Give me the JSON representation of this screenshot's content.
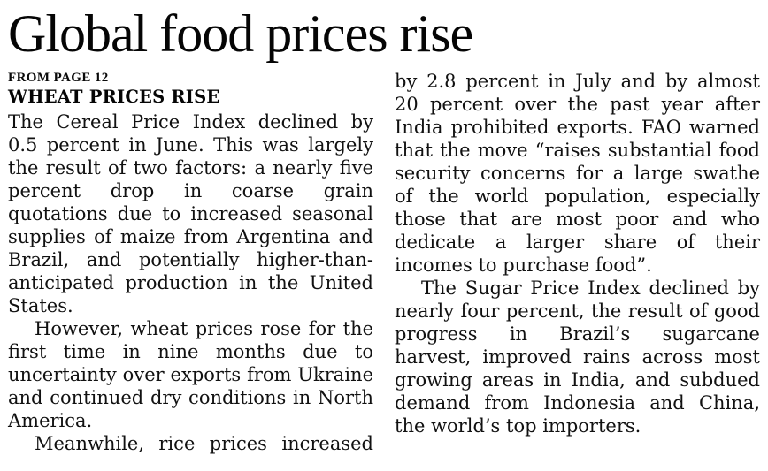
{
  "article": {
    "headline": "Global food prices rise",
    "continuation": "FROM PAGE 12",
    "subhead": "WHEAT PRICES RISE",
    "left_column": {
      "para1": "The Cereal Price Index declined by 0.5 percent in June. This was largely the result of two factors: a nearly five percent drop in coarse grain quotations due to increased seasonal supplies of maize from Argentina and Brazil, and potentially higher-than-anticipated production in the United States.",
      "para2": "However, wheat prices rose for the first time in nine months due to uncertainty over exports from Ukraine and continued dry conditions in North America.",
      "para3": "Meanwhile, rice prices increased"
    },
    "right_column": {
      "para1": "by 2.8 percent in July and by almost 20 percent over the past year after India prohibited exports. FAO warned that the move “raises substantial food security concerns for a large swathe of the world population, especially those that are most poor and who dedicate a larger share of their incomes to purchase food”.",
      "para2": "The Sugar Price Index declined by nearly four percent, the result of good progress in Brazil’s sugarcane harvest, improved rains across most growing areas in India, and subdued demand from Indonesia and China, the world’s top importers."
    }
  }
}
